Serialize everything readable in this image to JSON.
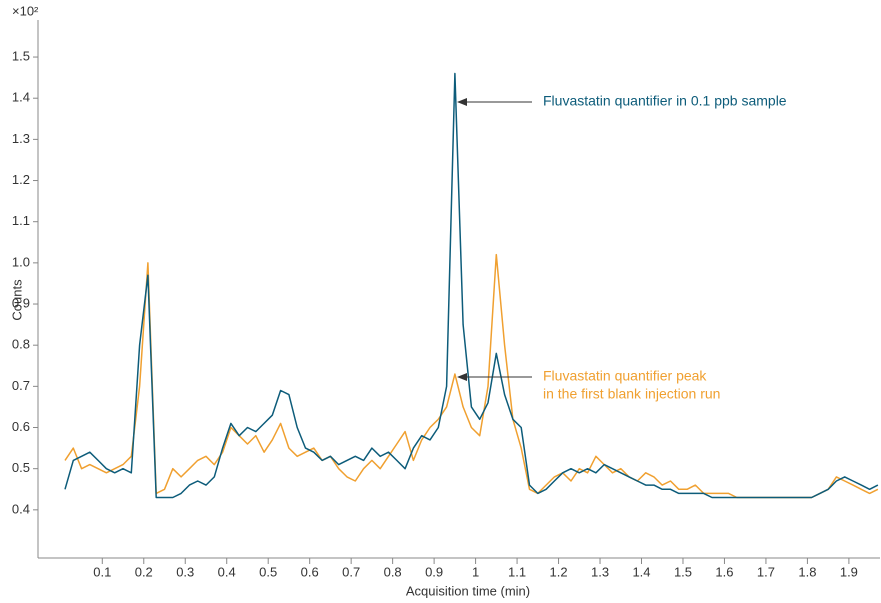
{
  "chart_data": {
    "type": "line",
    "y_scale_label": "×10²",
    "xlabel": "Acquisition time (min)",
    "ylabel": "Counts",
    "xlim": [
      -0.055,
      1.975
    ],
    "ylim": [
      0.283,
      1.59
    ],
    "xticks": [
      0.1,
      0.2,
      0.3,
      0.4,
      0.5,
      0.6,
      0.7,
      0.8,
      0.9,
      1,
      1.1,
      1.2,
      1.3,
      1.4,
      1.5,
      1.6,
      1.7,
      1.8,
      1.9
    ],
    "yticks": [
      0.4,
      0.5,
      0.6,
      0.7,
      0.8,
      0.9,
      {
        "value": 1,
        "label": "1.0"
      },
      1.1,
      1.2,
      1.3,
      1.4,
      1.5
    ],
    "grid": false,
    "x": [
      0.01,
      0.03,
      0.05,
      0.07,
      0.09,
      0.11,
      0.13,
      0.15,
      0.17,
      0.19,
      0.21,
      0.23,
      0.25,
      0.27,
      0.29,
      0.31,
      0.33,
      0.35,
      0.37,
      0.39,
      0.41,
      0.43,
      0.45,
      0.47,
      0.49,
      0.51,
      0.53,
      0.55,
      0.57,
      0.59,
      0.61,
      0.63,
      0.65,
      0.67,
      0.69,
      0.71,
      0.73,
      0.75,
      0.77,
      0.79,
      0.81,
      0.83,
      0.85,
      0.87,
      0.89,
      0.91,
      0.93,
      0.95,
      0.97,
      0.99,
      1.01,
      1.03,
      1.05,
      1.07,
      1.09,
      1.11,
      1.13,
      1.15,
      1.17,
      1.19,
      1.21,
      1.23,
      1.25,
      1.27,
      1.29,
      1.31,
      1.33,
      1.35,
      1.37,
      1.39,
      1.41,
      1.43,
      1.45,
      1.47,
      1.49,
      1.51,
      1.53,
      1.55,
      1.57,
      1.59,
      1.61,
      1.63,
      1.65,
      1.67,
      1.69,
      1.71,
      1.73,
      1.75,
      1.77,
      1.79,
      1.81,
      1.83,
      1.85,
      1.87,
      1.89,
      1.91,
      1.93,
      1.95,
      1.97
    ],
    "series": [
      {
        "name": "Blank injection",
        "color": "#f0a030",
        "values": [
          0.52,
          0.55,
          0.5,
          0.51,
          0.5,
          0.49,
          0.5,
          0.51,
          0.53,
          0.7,
          1.0,
          0.44,
          0.45,
          0.5,
          0.48,
          0.5,
          0.52,
          0.53,
          0.51,
          0.54,
          0.6,
          0.58,
          0.56,
          0.58,
          0.54,
          0.57,
          0.61,
          0.55,
          0.53,
          0.54,
          0.55,
          0.52,
          0.53,
          0.5,
          0.48,
          0.47,
          0.5,
          0.52,
          0.5,
          0.53,
          0.56,
          0.59,
          0.52,
          0.57,
          0.6,
          0.62,
          0.65,
          0.73,
          0.65,
          0.6,
          0.58,
          0.7,
          1.02,
          0.8,
          0.62,
          0.55,
          0.45,
          0.44,
          0.46,
          0.48,
          0.49,
          0.47,
          0.5,
          0.49,
          0.53,
          0.51,
          0.49,
          0.5,
          0.48,
          0.47,
          0.49,
          0.48,
          0.46,
          0.47,
          0.45,
          0.45,
          0.46,
          0.44,
          0.44,
          0.44,
          0.44,
          0.43,
          0.43,
          0.43,
          0.43,
          0.43,
          0.43,
          0.43,
          0.43,
          0.43,
          0.43,
          0.44,
          0.45,
          0.48,
          0.47,
          0.46,
          0.45,
          0.44,
          0.45
        ]
      },
      {
        "name": "0.1 ppb sample",
        "color": "#0d5c7a",
        "values": [
          0.45,
          0.52,
          0.53,
          0.54,
          0.52,
          0.5,
          0.49,
          0.5,
          0.49,
          0.8,
          0.97,
          0.43,
          0.43,
          0.43,
          0.44,
          0.46,
          0.47,
          0.46,
          0.48,
          0.55,
          0.61,
          0.58,
          0.6,
          0.59,
          0.61,
          0.63,
          0.69,
          0.68,
          0.6,
          0.55,
          0.54,
          0.52,
          0.53,
          0.51,
          0.52,
          0.53,
          0.52,
          0.55,
          0.53,
          0.54,
          0.52,
          0.5,
          0.55,
          0.58,
          0.57,
          0.6,
          0.7,
          1.46,
          0.85,
          0.65,
          0.62,
          0.66,
          0.78,
          0.68,
          0.62,
          0.6,
          0.46,
          0.44,
          0.45,
          0.47,
          0.49,
          0.5,
          0.49,
          0.5,
          0.49,
          0.51,
          0.5,
          0.49,
          0.48,
          0.47,
          0.46,
          0.46,
          0.45,
          0.45,
          0.44,
          0.44,
          0.44,
          0.44,
          0.43,
          0.43,
          0.43,
          0.43,
          0.43,
          0.43,
          0.43,
          0.43,
          0.43,
          0.43,
          0.43,
          0.43,
          0.43,
          0.44,
          0.45,
          0.47,
          0.48,
          0.47,
          0.46,
          0.45,
          0.46
        ]
      }
    ],
    "annotations": [
      {
        "lines": [
          "Fluvastatin quantifier in 0.1 ppb sample"
        ],
        "color": "#0d5c7a"
      },
      {
        "lines": [
          "Fluvastatin quantifier peak",
          "in the first blank injection run"
        ],
        "color": "#f0a030"
      }
    ]
  }
}
